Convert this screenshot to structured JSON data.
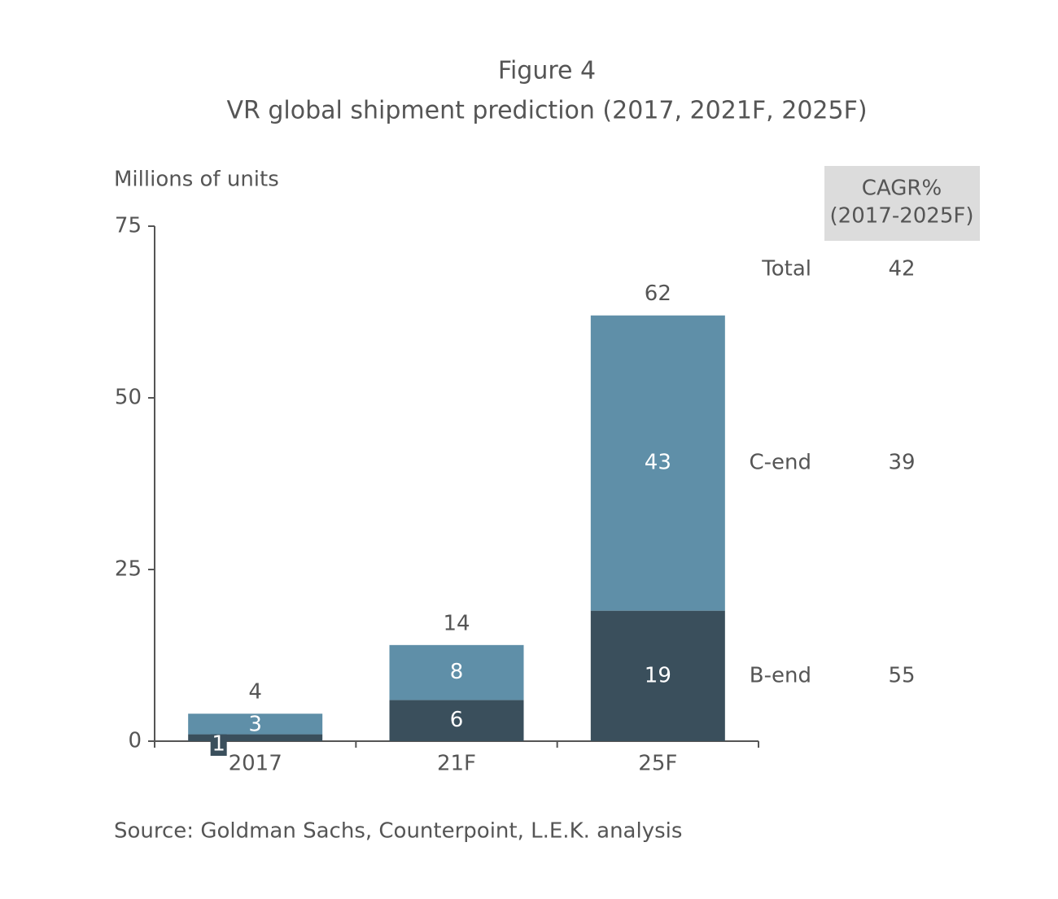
{
  "chart_data": {
    "type": "stacked_bar",
    "title": "Figure 4",
    "subtitle": "VR global shipment prediction (2017, 2021F, 2025F)",
    "y_label": "Millions of units",
    "categories": [
      "2017",
      "21F",
      "25F"
    ],
    "series": [
      {
        "name": "B-end",
        "color": "#3a4f5c",
        "values": [
          1,
          6,
          19
        ],
        "cagr": 55
      },
      {
        "name": "C-end",
        "color": "#5f8fa8",
        "values": [
          3,
          8,
          43
        ],
        "cagr": 39
      }
    ],
    "totals": [
      4,
      14,
      62
    ],
    "total_name": "Total",
    "total_cagr": 42,
    "cagr_header": [
      "CAGR%",
      "(2017-2025F)"
    ],
    "ylim": [
      0,
      75
    ],
    "yticks": [
      0,
      25,
      50,
      75
    ],
    "source": "Source: Goldman Sachs, Counterpoint, L.E.K. analysis"
  }
}
